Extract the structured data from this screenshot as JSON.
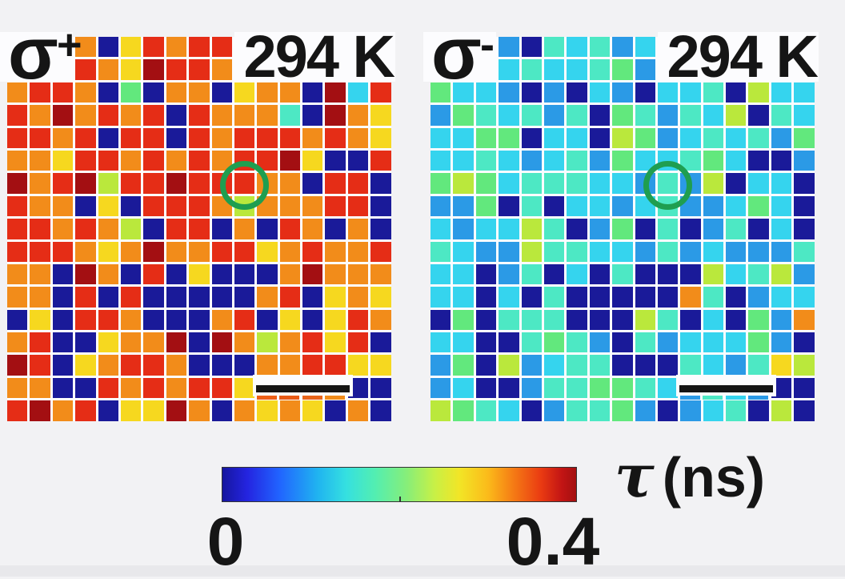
{
  "figure": {
    "background": "#f2f2f4",
    "panels": [
      {
        "label": "σ",
        "label_sup": "+",
        "temperature": "294 K",
        "scalebar_slivers": [
          "#ee6018",
          "#e85a16",
          "#e8641a",
          "#f08b1a"
        ]
      },
      {
        "label": "σ",
        "label_sup": "-",
        "temperature": "294 K",
        "scalebar_slivers": [
          "#2b9ae6",
          "#4de8c4",
          "#35d4ee",
          "#2b9ae6"
        ]
      }
    ],
    "palette": {
      "N": "#1a1a99",
      "B": "#2b9ae6",
      "C": "#35d4ee",
      "T": "#4de8c4",
      "G": "#62e87d",
      "L": "#bae83c",
      "Y": "#f6d81f",
      "O": "#f28c1a",
      "R": "#e52d16",
      "D": "#a30f12",
      "W": "#fcfcfe"
    },
    "colorbar": {
      "min_label": "0",
      "max_label": "0.4",
      "tau_symbol": "τ",
      "unit": "(ns)",
      "border_color": "#333333",
      "gradient": [
        "#16169f 0%",
        "#2424e0 7%",
        "#2163ff 16%",
        "#20b4f0 27%",
        "#35e0e0 35%",
        "#52eeb2 43%",
        "#86ee7a 52%",
        "#c8f046 60%",
        "#f2e526 67%",
        "#fbbb1a 75%",
        "#f57d15 82%",
        "#ea3b12 90%",
        "#c21414 96%",
        "#a31010 100%"
      ]
    },
    "annotation_colors": {
      "circle": "#1f9e50",
      "scalebar": "#141414",
      "text": "#151515"
    }
  },
  "chart_data": {
    "type": "heatmap",
    "panels": [
      {
        "name": "σ+",
        "temperature": "294 K",
        "rows": 17,
        "cols": 17,
        "grid": [
          "WWOONYRORRWWWWWWW",
          "WWRROYDRROWWWWWWW",
          "ORRONGNOONYOONDCR",
          "RODORORNROOOTNDOY",
          "RRORNRRNRORRROROY",
          "OOYRRORORORRDYNNR",
          "DORDLRRDRRROONRRN",
          "ROONYNRRROLOOORRN",
          "RROROLNRRNONRONON",
          "RRROYODOORRYOROOR",
          "OONDONRNYNNNODOOO",
          "OONRNRNNNNNORNYOY",
          "NYNRRONNNORNYNYRO",
          "ORNNYOODNDOLORYRN",
          "DRNYORRONNNOORRYY",
          "OONNRORORRYWWWWNN",
          "RDORNYYDONOYOYNON"
        ]
      },
      {
        "name": "σ-",
        "temperature": "294 K",
        "rows": 17,
        "cols": 17,
        "grid": [
          "WWCBNTCTBCWWWWWWW",
          "WWCCTCCTGBWWWWWWW",
          "GCCBNBNCBNCCTNLCC",
          "BGTCTBTNGTBTCLNTC",
          "CCGGNCCNLGBCTCTBG",
          "CCTCBCTBGCCTGCNNB",
          "GLGCTTTCCBTBLNCCN",
          "BBGNTNCCBCTBBCGCN",
          "CBCCLTNBGNTNBTNCN",
          "TCBBLTTCCBTBCBBBT",
          "CCNBTNCNTNNNLCTLB",
          "CCNCNTNNNNNOTNBCC",
          "NGNTTTNNNLTNCNGBO",
          "CCNNTGTBNTBCCCGBN",
          "BGNLBCTTNNNTCBTYL",
          "BCNNBTTGGTCWWWWNN",
          "LGTCNBTTGBNBCTNLN"
        ]
      }
    ],
    "color_scale": {
      "colormap": "jet",
      "min": 0,
      "max": 0.4,
      "axis_label": "τ (ns)",
      "tick_labels": [
        "0",
        "0.4"
      ]
    },
    "palette_value_estimates_ns": {
      "N": 0.02,
      "B": 0.1,
      "C": 0.15,
      "T": 0.19,
      "G": 0.22,
      "L": 0.26,
      "Y": 0.29,
      "O": 0.32,
      "R": 0.36,
      "D": 0.4,
      "W": null
    }
  }
}
